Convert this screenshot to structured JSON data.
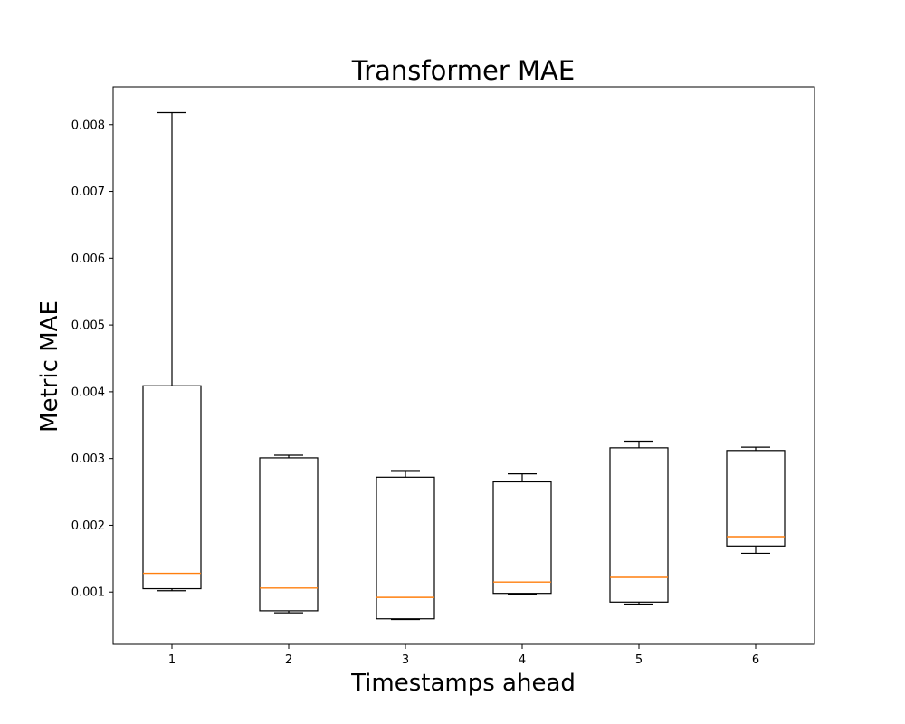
{
  "chart_data": {
    "type": "box",
    "title": "Transformer MAE",
    "xlabel": "Timestamps ahead",
    "ylabel": "Metric MAE",
    "categories": [
      "1",
      "2",
      "3",
      "4",
      "5",
      "6"
    ],
    "boxes": [
      {
        "whisker_low": 0.00102,
        "q1": 0.00105,
        "median": 0.00128,
        "q3": 0.00409,
        "whisker_high": 0.00818
      },
      {
        "whisker_low": 0.00069,
        "q1": 0.00072,
        "median": 0.00106,
        "q3": 0.00301,
        "whisker_high": 0.00305
      },
      {
        "whisker_low": 0.00059,
        "q1": 0.0006,
        "median": 0.00092,
        "q3": 0.00272,
        "whisker_high": 0.00282
      },
      {
        "whisker_low": 0.00097,
        "q1": 0.00098,
        "median": 0.00115,
        "q3": 0.00265,
        "whisker_high": 0.00277
      },
      {
        "whisker_low": 0.00082,
        "q1": 0.00085,
        "median": 0.00122,
        "q3": 0.00316,
        "whisker_high": 0.00326
      },
      {
        "whisker_low": 0.00158,
        "q1": 0.00169,
        "median": 0.00183,
        "q3": 0.00312,
        "whisker_high": 0.00317
      }
    ],
    "y_ticks": [
      0.001,
      0.002,
      0.003,
      0.004,
      0.005,
      0.006,
      0.007,
      0.008
    ],
    "y_tick_labels": [
      "0.001",
      "0.002",
      "0.003",
      "0.004",
      "0.005",
      "0.006",
      "0.007",
      "0.008"
    ],
    "ylim": [
      0.000217,
      0.008566
    ],
    "grid": false,
    "colors": {
      "box": "#000000",
      "median": "#ff7f0e",
      "axes": "#000000",
      "background": "#ffffff"
    }
  }
}
